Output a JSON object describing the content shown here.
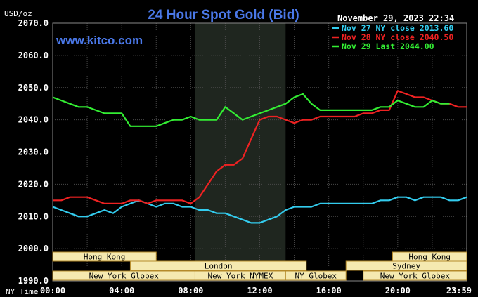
{
  "chart_data": {
    "type": "line",
    "title": "24 Hour Spot Gold (Bid)",
    "units_label": "USD/oz",
    "timestamp": "November 29, 2023 22:34",
    "watermark": "www.kitco.com",
    "x_axis_label": "NY Time",
    "xlim": [
      0,
      24
    ],
    "ylim": [
      1990,
      2070
    ],
    "y_ticks": [
      {
        "value": 1990,
        "label": "1990.0"
      },
      {
        "value": 2000,
        "label": "2000.0"
      },
      {
        "value": 2010,
        "label": "2010.0"
      },
      {
        "value": 2020,
        "label": "2020.0"
      },
      {
        "value": 2030,
        "label": "2030.0"
      },
      {
        "value": 2040,
        "label": "2040.0"
      },
      {
        "value": 2050,
        "label": "2050.0"
      },
      {
        "value": 2060,
        "label": "2060.0"
      },
      {
        "value": 2070,
        "label": "2070.0"
      }
    ],
    "x_ticks": [
      {
        "value": 0,
        "label": "00:00"
      },
      {
        "value": 4,
        "label": "04:00"
      },
      {
        "value": 8,
        "label": "08:00"
      },
      {
        "value": 12,
        "label": "12:00"
      },
      {
        "value": 16,
        "label": "16:00"
      },
      {
        "value": 20,
        "label": "20:00"
      },
      {
        "value": 24,
        "label": "23:59"
      }
    ],
    "grid": true,
    "highlight_band": [
      8.25,
      13.5
    ],
    "legend": [
      {
        "label": "Nov 27 NY close 2013.60",
        "color": "#33ccee"
      },
      {
        "label": "Nov 28 NY close 2040.50",
        "color": "#ee2222"
      },
      {
        "label": "Nov 29 Last 2044.00",
        "color": "#33ee33"
      }
    ],
    "series": [
      {
        "name": "Nov 27",
        "color": "#33ccee",
        "x": [
          0,
          0.5,
          1,
          1.5,
          2,
          2.5,
          3,
          3.5,
          4,
          4.5,
          5,
          5.5,
          6,
          6.5,
          7,
          7.5,
          8,
          8.5,
          9,
          9.5,
          10,
          10.5,
          11,
          11.5,
          12,
          12.5,
          13,
          13.5,
          14,
          14.5,
          15,
          15.5,
          16,
          16.5,
          17,
          17.5,
          18,
          18.5,
          19,
          19.5,
          20,
          20.5,
          21,
          21.5,
          22,
          22.5,
          23,
          23.5,
          24
        ],
        "y": [
          2013,
          2012,
          2011,
          2010,
          2010,
          2011,
          2012,
          2011,
          2013,
          2014,
          2015,
          2014,
          2013,
          2014,
          2014,
          2013,
          2013,
          2012,
          2012,
          2011,
          2011,
          2010,
          2009,
          2008,
          2008,
          2009,
          2010,
          2012,
          2013,
          2013,
          2013,
          2014,
          2014,
          2014,
          2014,
          2014,
          2014,
          2014,
          2015,
          2015,
          2016,
          2016,
          2015,
          2016,
          2016,
          2016,
          2015,
          2015,
          2016
        ]
      },
      {
        "name": "Nov 28",
        "color": "#ee2222",
        "x": [
          0,
          0.5,
          1,
          1.5,
          2,
          2.5,
          3,
          3.5,
          4,
          4.5,
          5,
          5.5,
          6,
          6.5,
          7,
          7.5,
          8,
          8.5,
          9,
          9.5,
          10,
          10.5,
          11,
          11.5,
          12,
          12.5,
          13,
          13.5,
          14,
          14.5,
          15,
          15.5,
          16,
          16.5,
          17,
          17.5,
          18,
          18.5,
          19,
          19.5,
          20,
          20.5,
          21,
          21.5,
          22,
          22.5,
          23,
          23.5,
          24
        ],
        "y": [
          2015,
          2015,
          2016,
          2016,
          2016,
          2015,
          2014,
          2014,
          2014,
          2015,
          2015,
          2014,
          2015,
          2015,
          2015,
          2015,
          2014,
          2016,
          2020,
          2024,
          2026,
          2026,
          2028,
          2034,
          2040,
          2041,
          2041,
          2040,
          2039,
          2040,
          2040,
          2041,
          2041,
          2041,
          2041,
          2041,
          2042,
          2042,
          2043,
          2043,
          2049,
          2048,
          2047,
          2047,
          2046,
          2045,
          2045,
          2044,
          2044
        ]
      },
      {
        "name": "Nov 29",
        "color": "#33ee33",
        "x": [
          0,
          0.5,
          1,
          1.5,
          2,
          2.5,
          3,
          3.5,
          4,
          4.5,
          5,
          5.5,
          6,
          6.5,
          7,
          7.5,
          8,
          8.5,
          9,
          9.5,
          10,
          10.5,
          11,
          11.5,
          12,
          12.5,
          13,
          13.5,
          14,
          14.5,
          15,
          15.5,
          16,
          16.5,
          17,
          17.5,
          18,
          18.5,
          19,
          19.5,
          20,
          20.5,
          21,
          21.5,
          22,
          22.5,
          23
        ],
        "y": [
          2047,
          2046,
          2045,
          2044,
          2044,
          2043,
          2042,
          2042,
          2042,
          2038,
          2038,
          2038,
          2038,
          2039,
          2040,
          2040,
          2041,
          2040,
          2040,
          2040,
          2044,
          2042,
          2040,
          2041,
          2042,
          2043,
          2044,
          2045,
          2047,
          2048,
          2045,
          2043,
          2043,
          2043,
          2043,
          2043,
          2043,
          2043,
          2044,
          2044,
          2046,
          2045,
          2044,
          2044,
          2046,
          2045,
          2045
        ]
      }
    ],
    "market_sessions": [
      {
        "label": "Hong Kong",
        "start": 0,
        "end": 6.0,
        "row": 0
      },
      {
        "label": "Hong Kong",
        "start": 19.7,
        "end": 24,
        "row": 0
      },
      {
        "label": "London",
        "start": 4.5,
        "end": 14.7,
        "row": 1
      },
      {
        "label": "Sydney",
        "start": 17.0,
        "end": 24,
        "row": 1
      },
      {
        "label": "New York Globex",
        "start": 0,
        "end": 8.25,
        "row": 2
      },
      {
        "label": "New York NYMEX",
        "start": 8.25,
        "end": 13.5,
        "row": 2
      },
      {
        "label": "NY Globex",
        "start": 13.5,
        "end": 17.0,
        "row": 2
      },
      {
        "label": "New York Globex",
        "start": 18.0,
        "end": 24,
        "row": 2
      }
    ]
  },
  "colors": {
    "background": "#000000",
    "band": "#1f261f",
    "grid": "#4a4a4a",
    "axis_text": "#ffffff",
    "title": "#4a78e8",
    "session_fill": "#f5e9b0",
    "session_border": "#b58a2a",
    "session_text": "#000000"
  }
}
